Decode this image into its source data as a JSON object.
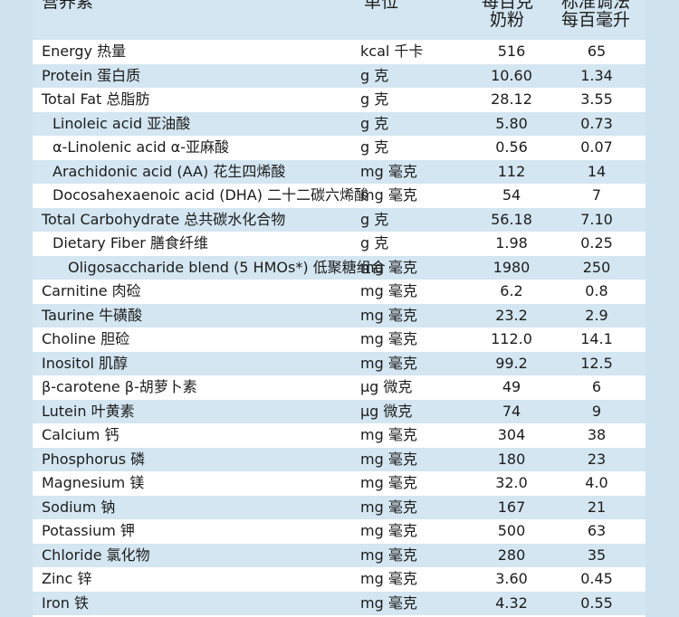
{
  "header": {
    "name_col": "营养素",
    "unit_col": "单位",
    "col1_line1": "每百克",
    "col1_line2": "奶粉",
    "col2_line1": "标准调法",
    "col2_line2": "每百毫升"
  },
  "rows": [
    {
      "name": "Energy  热量",
      "unit": "kcal 千卡",
      "per100g": "516",
      "per100ml": "65",
      "indent": 0
    },
    {
      "name": "Protein  蛋白质",
      "unit": "g 克",
      "per100g": "10.60",
      "per100ml": "1.34",
      "indent": 0
    },
    {
      "name": "Total Fat  总脂肪",
      "unit": "g 克",
      "per100g": "28.12",
      "per100ml": "3.55",
      "indent": 0
    },
    {
      "name": "Linoleic acid  亚油酸",
      "unit": "g 克",
      "per100g": "5.80",
      "per100ml": "0.73",
      "indent": 1
    },
    {
      "name": "α-Linolenic acid  α-亚麻酸",
      "unit": "g 克",
      "per100g": "0.56",
      "per100ml": "0.07",
      "indent": 1
    },
    {
      "name": "Arachidonic acid (AA)  花生四烯酸",
      "unit": "mg 毫克",
      "per100g": "112",
      "per100ml": "14",
      "indent": 1
    },
    {
      "name": "Docosahexaenoic acid (DHA)  二十二碳六烯酸",
      "unit": "mg 毫克",
      "per100g": "54",
      "per100ml": "7",
      "indent": 1
    },
    {
      "name": "Total Carbohydrate  总共碳水化合物",
      "unit": "g 克",
      "per100g": "56.18",
      "per100ml": "7.10",
      "indent": 0
    },
    {
      "name": "Dietary Fiber  膳食纤维",
      "unit": "g 克",
      "per100g": "1.98",
      "per100ml": "0.25",
      "indent": 1
    },
    {
      "name": "Oligosaccharide blend (5 HMOs*)  低聚糖组合",
      "unit": "mg 毫克",
      "per100g": "1980",
      "per100ml": "250",
      "indent": 2
    },
    {
      "name": "Carnitine  肉硷",
      "unit": "mg 毫克",
      "per100g": "6.2",
      "per100ml": "0.8",
      "indent": 0
    },
    {
      "name": "Taurine  牛磺酸",
      "unit": "mg 毫克",
      "per100g": "23.2",
      "per100ml": "2.9",
      "indent": 0
    },
    {
      "name": "Choline  胆硷",
      "unit": "mg 毫克",
      "per100g": "112.0",
      "per100ml": "14.1",
      "indent": 0
    },
    {
      "name": "Inositol  肌醇",
      "unit": "mg 毫克",
      "per100g": "99.2",
      "per100ml": "12.5",
      "indent": 0
    },
    {
      "name": "β-carotene  β-胡萝卜素",
      "unit": "μg 微克",
      "per100g": "49",
      "per100ml": "6",
      "indent": 0
    },
    {
      "name": "Lutein  叶黄素",
      "unit": "μg 微克",
      "per100g": "74",
      "per100ml": "9",
      "indent": 0
    },
    {
      "name": "Calcium  钙",
      "unit": "mg 毫克",
      "per100g": "304",
      "per100ml": "38",
      "indent": 0
    },
    {
      "name": "Phosphorus  磷",
      "unit": "mg 毫克",
      "per100g": "180",
      "per100ml": "23",
      "indent": 0
    },
    {
      "name": "Magnesium  镁",
      "unit": "mg 毫克",
      "per100g": "32.0",
      "per100ml": "4.0",
      "indent": 0
    },
    {
      "name": "Sodium  钠",
      "unit": "mg 毫克",
      "per100g": "167",
      "per100ml": "21",
      "indent": 0
    },
    {
      "name": "Potassium  钾",
      "unit": "mg 毫克",
      "per100g": "500",
      "per100ml": "63",
      "indent": 0
    },
    {
      "name": "Chloride  氯化物",
      "unit": "mg 毫克",
      "per100g": "280",
      "per100ml": "35",
      "indent": 0
    },
    {
      "name": "Zinc  锌",
      "unit": "mg 毫克",
      "per100g": "3.60",
      "per100ml": "0.45",
      "indent": 0
    },
    {
      "name": "Iron  铁",
      "unit": "mg 毫克",
      "per100g": "4.32",
      "per100ml": "0.55",
      "indent": 0
    }
  ]
}
